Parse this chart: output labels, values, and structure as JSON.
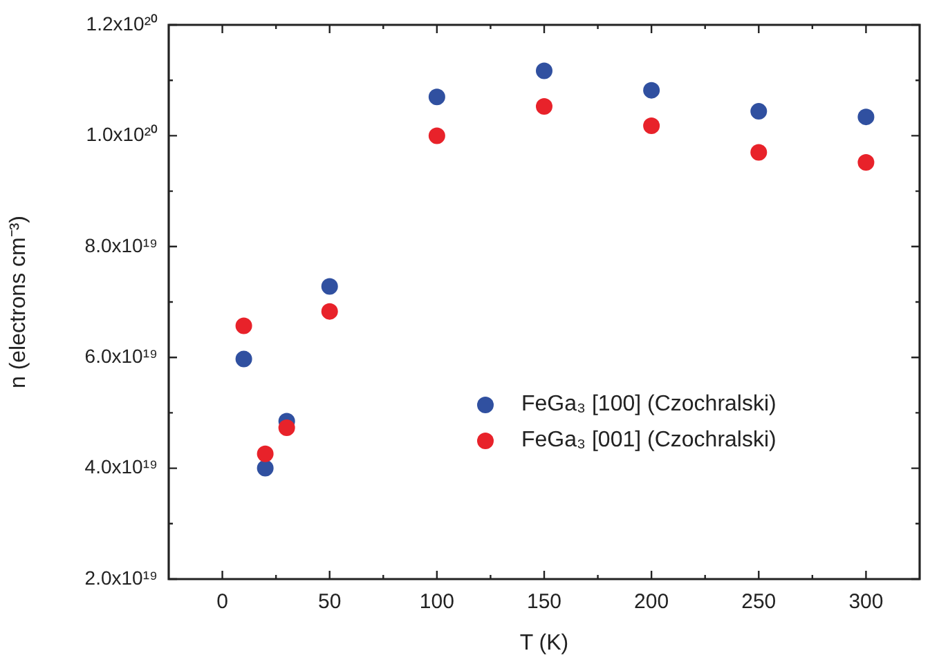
{
  "chart_data": {
    "type": "scatter",
    "xlabel": "T (K)",
    "ylabel": "n (electrons cm⁻³)",
    "x": [
      10,
      20,
      30,
      50,
      100,
      150,
      200,
      250,
      300
    ],
    "series": [
      {
        "name": "FeGa₃ [100] (Czochralski)",
        "color": "#3050a0",
        "values": [
          5.97e+19,
          4e+19,
          4.85e+19,
          7.28e+19,
          1.07e+20,
          1.117e+20,
          1.082e+20,
          1.044e+20,
          1.034e+20
        ]
      },
      {
        "name": "FeGa₃ [001] (Czochralski)",
        "color": "#e8222a",
        "values": [
          6.57e+19,
          4.26e+19,
          4.73e+19,
          6.83e+19,
          1e+20,
          1.053e+20,
          1.018e+20,
          9.7e+19,
          9.52e+19
        ]
      }
    ],
    "xlim": [
      -25,
      325
    ],
    "xticks": [
      0,
      {
        "value": 25,
        "label": null
      },
      50,
      {
        "value": 75,
        "label": null
      },
      100,
      {
        "value": 125,
        "label": null
      },
      150,
      {
        "value": 175,
        "label": null
      },
      200,
      {
        "value": 225,
        "label": null
      },
      250,
      {
        "value": 275,
        "label": null
      },
      300
    ],
    "ylim": [
      2e+19,
      1.2e+20
    ],
    "yticks": [
      {
        "value": 2e+19,
        "label": "2.0x10¹⁹"
      },
      {
        "value": 3e+19,
        "label": null
      },
      {
        "value": 4e+19,
        "label": "4.0x10¹⁹"
      },
      {
        "value": 5e+19,
        "label": null
      },
      {
        "value": 6e+19,
        "label": "6.0x10¹⁹"
      },
      {
        "value": 7e+19,
        "label": null
      },
      {
        "value": 8e+19,
        "label": "8.0x10¹⁹"
      },
      {
        "value": 9e+19,
        "label": null
      },
      {
        "value": 1e+20,
        "label": "1.0x10²⁰"
      },
      {
        "value": 1.1e+20,
        "label": null
      },
      {
        "value": 1.2e+20,
        "label": "1.2x10²⁰"
      }
    ],
    "marker": "circle",
    "grid": false,
    "legend": "right"
  }
}
